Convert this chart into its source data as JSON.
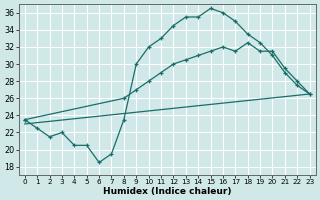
{
  "xlabel": "Humidex (Indice chaleur)",
  "bg_color": "#d0e8e8",
  "grid_color": "#ffffff",
  "line_color": "#1a6e6a",
  "xlim": [
    -0.5,
    23.5
  ],
  "ylim": [
    17,
    37
  ],
  "xticks": [
    0,
    1,
    2,
    3,
    4,
    5,
    6,
    7,
    8,
    9,
    10,
    11,
    12,
    13,
    14,
    15,
    16,
    17,
    18,
    19,
    20,
    21,
    22,
    23
  ],
  "yticks": [
    18,
    20,
    22,
    24,
    26,
    28,
    30,
    32,
    34,
    36
  ],
  "line1_x": [
    0,
    1,
    2,
    3,
    4,
    5,
    6,
    7,
    8,
    9,
    10,
    11,
    12,
    13,
    14,
    15,
    16,
    17,
    18,
    19,
    20,
    21,
    22,
    23
  ],
  "line1_y": [
    23.5,
    22.5,
    21.5,
    22.0,
    20.5,
    20.5,
    18.5,
    19.5,
    23.5,
    30.0,
    32.0,
    33.0,
    34.5,
    35.5,
    35.5,
    36.5,
    36.0,
    35.0,
    33.5,
    32.5,
    31.0,
    29.0,
    27.5,
    26.5
  ],
  "line2_x": [
    0,
    8,
    9,
    10,
    11,
    12,
    13,
    14,
    15,
    16,
    17,
    18,
    19,
    20,
    21,
    22,
    23
  ],
  "line2_y": [
    23.5,
    26.0,
    27.0,
    28.0,
    29.0,
    30.0,
    30.5,
    31.0,
    31.5,
    32.0,
    31.5,
    32.5,
    31.5,
    31.5,
    29.5,
    28.0,
    26.5
  ],
  "line3_x": [
    0,
    23
  ],
  "line3_y": [
    23.0,
    26.5
  ]
}
